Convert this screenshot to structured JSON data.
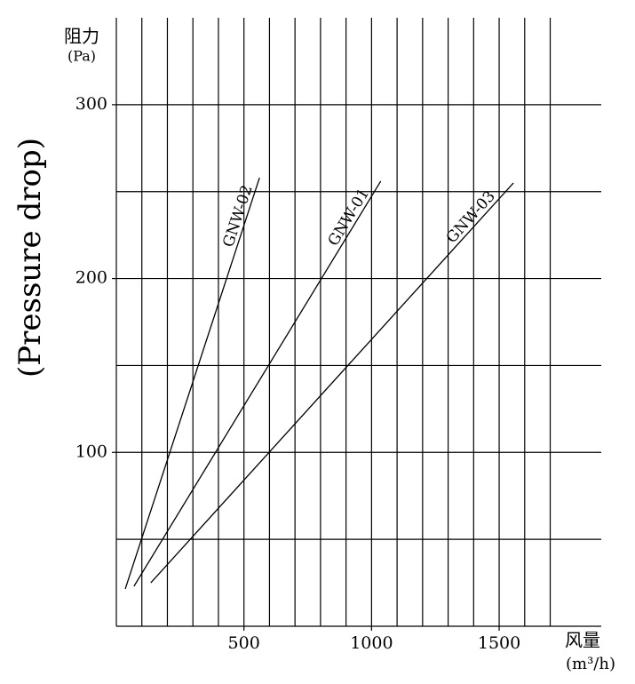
{
  "chart_data": {
    "type": "line",
    "ylabel": "阻力",
    "ylabel_unit": "(Pa)",
    "ylabel_en": "(Pressure drop)",
    "xlabel": "风量",
    "xlabel_unit": "(m³/h)",
    "xlim": [
      0,
      1900
    ],
    "ylim": [
      0,
      350
    ],
    "xticks": [
      500,
      1000,
      1500
    ],
    "yticks": [
      100,
      200,
      300
    ],
    "x_grid": [
      100,
      200,
      300,
      400,
      500,
      600,
      700,
      800,
      900,
      1000,
      1100,
      1200,
      1300,
      1400,
      1500,
      1600,
      1700
    ],
    "y_grid": [
      50,
      100,
      150,
      200,
      250,
      300
    ],
    "grid": true,
    "series": [
      {
        "name": "GNW-02",
        "color": "#000000",
        "x": [
          35,
          561
        ],
        "values": [
          21.5,
          258
        ]
      },
      {
        "name": "GNW-01",
        "color": "#000000",
        "x": [
          69,
          1036
        ],
        "values": [
          23,
          256
        ]
      },
      {
        "name": "GNW-03",
        "color": "#000000",
        "x": [
          135,
          1556
        ],
        "values": [
          25,
          255
        ]
      }
    ]
  }
}
